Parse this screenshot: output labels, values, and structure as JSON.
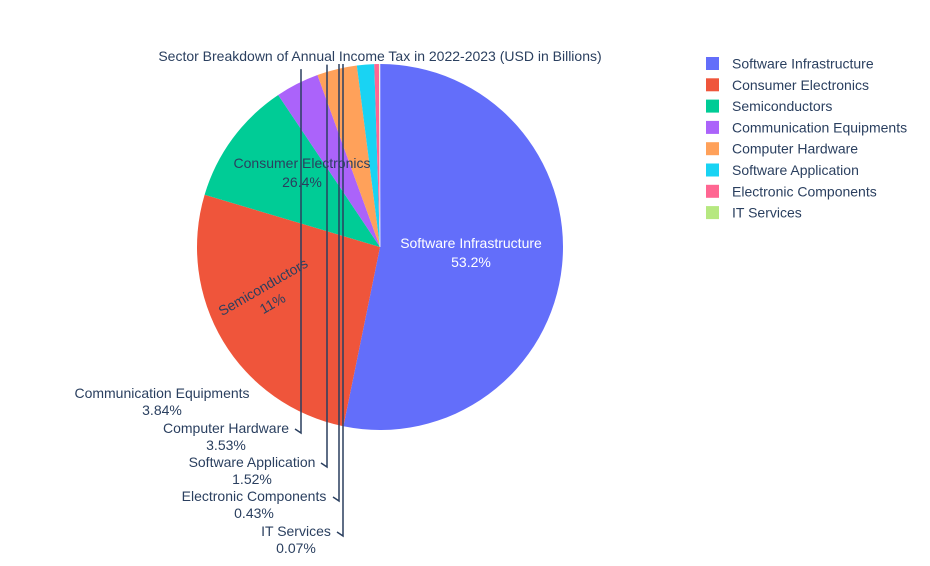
{
  "chart_data": {
    "type": "pie",
    "title": "Sector Breakdown of Annual Income Tax in 2022-2023 (USD in Billions)",
    "legend_position": "top-right",
    "slices": [
      {
        "label": "Software Infrastructure",
        "percent": 53.2,
        "percent_label": "53.2%",
        "color": "#636efa",
        "text_color": "#ffffff",
        "label_position": "inside"
      },
      {
        "label": "Consumer Electronics",
        "percent": 26.4,
        "percent_label": "26.4%",
        "color": "#ef553b",
        "text_color": "#2a3f5f",
        "label_position": "inside"
      },
      {
        "label": "Semiconductors",
        "percent": 11.0,
        "percent_label": "11%",
        "color": "#00cc96",
        "text_color": "#2a3f5f",
        "label_position": "inside-rotated"
      },
      {
        "label": "Communication Equipments",
        "percent": 3.84,
        "percent_label": "3.84%",
        "color": "#ab63fa",
        "text_color": "#2a3f5f",
        "label_position": "outside"
      },
      {
        "label": "Computer Hardware",
        "percent": 3.53,
        "percent_label": "3.53%",
        "color": "#ffa15a",
        "text_color": "#2a3f5f",
        "label_position": "outside"
      },
      {
        "label": "Software Application",
        "percent": 1.52,
        "percent_label": "1.52%",
        "color": "#19d3f3",
        "text_color": "#2a3f5f",
        "label_position": "outside"
      },
      {
        "label": "Electronic Components",
        "percent": 0.43,
        "percent_label": "0.43%",
        "color": "#ff6692",
        "text_color": "#2a3f5f",
        "label_position": "outside"
      },
      {
        "label": "IT Services",
        "percent": 0.07,
        "percent_label": "0.07%",
        "color": "#b6e880",
        "text_color": "#2a3f5f",
        "label_position": "outside"
      }
    ]
  }
}
